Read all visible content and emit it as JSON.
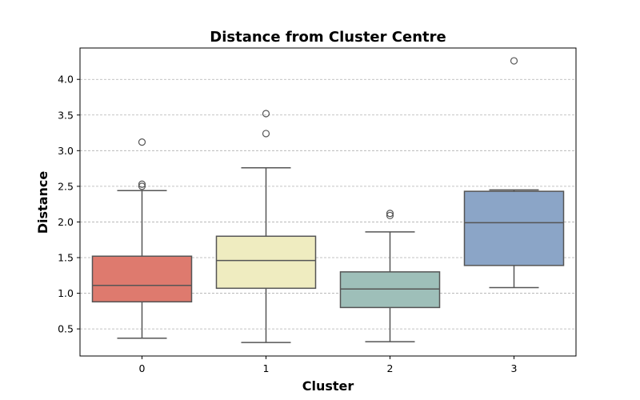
{
  "chart_data": {
    "type": "box",
    "title": "Distance from Cluster Centre",
    "xlabel": "Cluster",
    "ylabel": "Distance",
    "ylim": [
      0.12,
      4.44
    ],
    "yticks": [
      0.5,
      1.0,
      1.5,
      2.0,
      2.5,
      3.0,
      3.5,
      4.0
    ],
    "ytick_labels": [
      "0.5",
      "1.0",
      "1.5",
      "2.0",
      "2.5",
      "3.0",
      "3.5",
      "4.0"
    ],
    "grid": "y-dashed",
    "categories": [
      "0",
      "1",
      "2",
      "3"
    ],
    "boxes": [
      {
        "category": "0",
        "whisker_low": 0.37,
        "q1": 0.88,
        "median": 1.11,
        "q3": 1.52,
        "whisker_high": 2.44,
        "outliers": [
          2.5,
          2.53,
          3.12
        ],
        "color": "#de7a6e"
      },
      {
        "category": "1",
        "whisker_low": 0.31,
        "q1": 1.07,
        "median": 1.46,
        "q3": 1.8,
        "whisker_high": 2.76,
        "outliers": [
          3.24,
          3.52
        ],
        "color": "#efecc0"
      },
      {
        "category": "2",
        "whisker_low": 0.32,
        "q1": 0.8,
        "median": 1.06,
        "q3": 1.3,
        "whisker_high": 1.86,
        "outliers": [
          2.09,
          2.12
        ],
        "color": "#9ebfb9"
      },
      {
        "category": "3",
        "whisker_low": 1.08,
        "q1": 1.39,
        "median": 1.99,
        "q3": 2.43,
        "whisker_high": 2.45,
        "outliers": [
          4.26
        ],
        "color": "#8ba5c7"
      }
    ],
    "line_color": "#555555"
  }
}
